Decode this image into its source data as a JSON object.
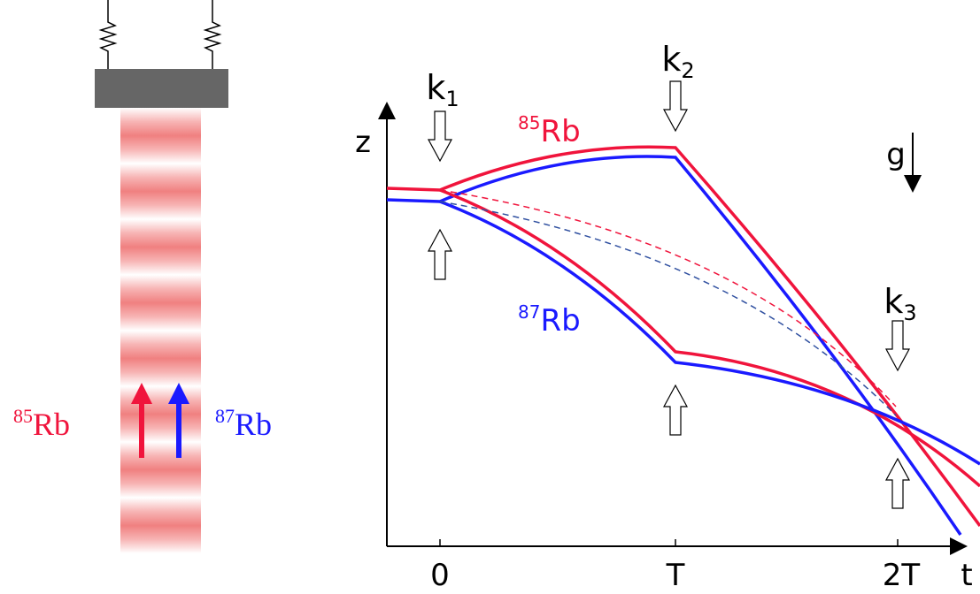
{
  "left": {
    "label_85": {
      "mass": "85",
      "element": "Rb"
    },
    "label_87": {
      "mass": "87",
      "element": "Rb"
    }
  },
  "plot": {
    "axis_z": "z",
    "axis_t": "t",
    "gravity": "g",
    "ticks": [
      "0",
      "T",
      "2T"
    ],
    "pulses": [
      {
        "symbol": "k",
        "index": "1"
      },
      {
        "symbol": "k",
        "index": "2"
      },
      {
        "symbol": "k",
        "index": "3"
      }
    ],
    "label_85": {
      "mass": "85",
      "element": "Rb"
    },
    "label_87": {
      "mass": "87",
      "element": "Rb"
    }
  }
}
